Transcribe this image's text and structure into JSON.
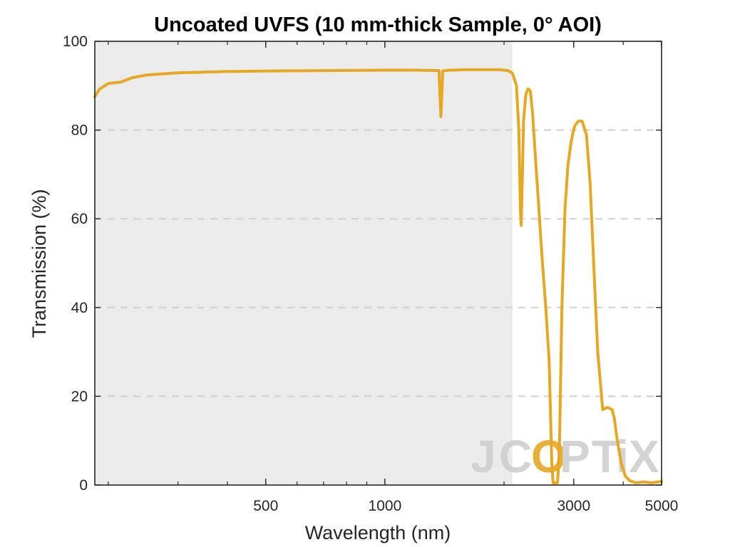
{
  "chart_data": {
    "type": "line",
    "title": "Uncoated UVFS (10 mm-thick Sample, 0° AOI)",
    "xlabel": "Wavelength (nm)",
    "ylabel": "Transmission (%)",
    "xscale": "log",
    "xlim": [
      185,
      5000
    ],
    "ylim": [
      0,
      100
    ],
    "x_ticks": [
      500,
      1000,
      3000,
      5000
    ],
    "x_tick_labels": [
      "500",
      "1000",
      "3000",
      "5000"
    ],
    "y_ticks": [
      0,
      20,
      40,
      60,
      80,
      100
    ],
    "y_tick_labels": [
      "0",
      "20",
      "40",
      "60",
      "80",
      "100"
    ],
    "grid": "dashed horizontal lines",
    "shaded_region": {
      "x_range": [
        185,
        2100
      ],
      "color": "#ebebeb"
    },
    "series": [
      {
        "color": "#e6a823",
        "x": [
          185,
          190,
          200,
          215,
          230,
          250,
          300,
          400,
          500,
          700,
          1000,
          1200,
          1370,
          1380,
          1385,
          1390,
          1400,
          1450,
          1600,
          1800,
          1950,
          2050,
          2100,
          2150,
          2180,
          2200,
          2210,
          2225,
          2240,
          2270,
          2300,
          2330,
          2360,
          2400,
          2450,
          2500,
          2550,
          2600,
          2640,
          2660,
          2680,
          2700,
          2730,
          2760,
          2800,
          2850,
          2900,
          2920,
          2950,
          2980,
          3020,
          3080,
          3150,
          3230,
          3300,
          3350,
          3400,
          3450,
          3550,
          3650,
          3750,
          3800,
          3850,
          3950,
          4050,
          4150,
          4300,
          4500,
          4700,
          5000
        ],
        "y": [
          87.5,
          89.2,
          90.5,
          90.8,
          91.8,
          92.4,
          92.9,
          93.2,
          93.3,
          93.4,
          93.5,
          93.5,
          93.4,
          86,
          83,
          86,
          93.3,
          93.5,
          93.6,
          93.6,
          93.6,
          93.4,
          92.8,
          90,
          80,
          62,
          58.5,
          70,
          82,
          88,
          89.3,
          88.8,
          84,
          74,
          62,
          50,
          40,
          28,
          5,
          0.5,
          0.5,
          0.5,
          0.5,
          8,
          40,
          62,
          72,
          74,
          77,
          79,
          81,
          82,
          82,
          79,
          68,
          55,
          42,
          30,
          17,
          17.5,
          17,
          15,
          11,
          5,
          2,
          1,
          0.5,
          0.7,
          0.5,
          0.8
        ]
      }
    ]
  },
  "watermark": {
    "letters": [
      "J",
      "C",
      "O",
      "P",
      "T",
      "i",
      "X"
    ],
    "colors": [
      "#cfcfcf",
      "#cfcfcf",
      "#e6a823",
      "#cfcfcf",
      "#cfcfcf",
      "#cfcfcf",
      "#cfcfcf"
    ]
  }
}
